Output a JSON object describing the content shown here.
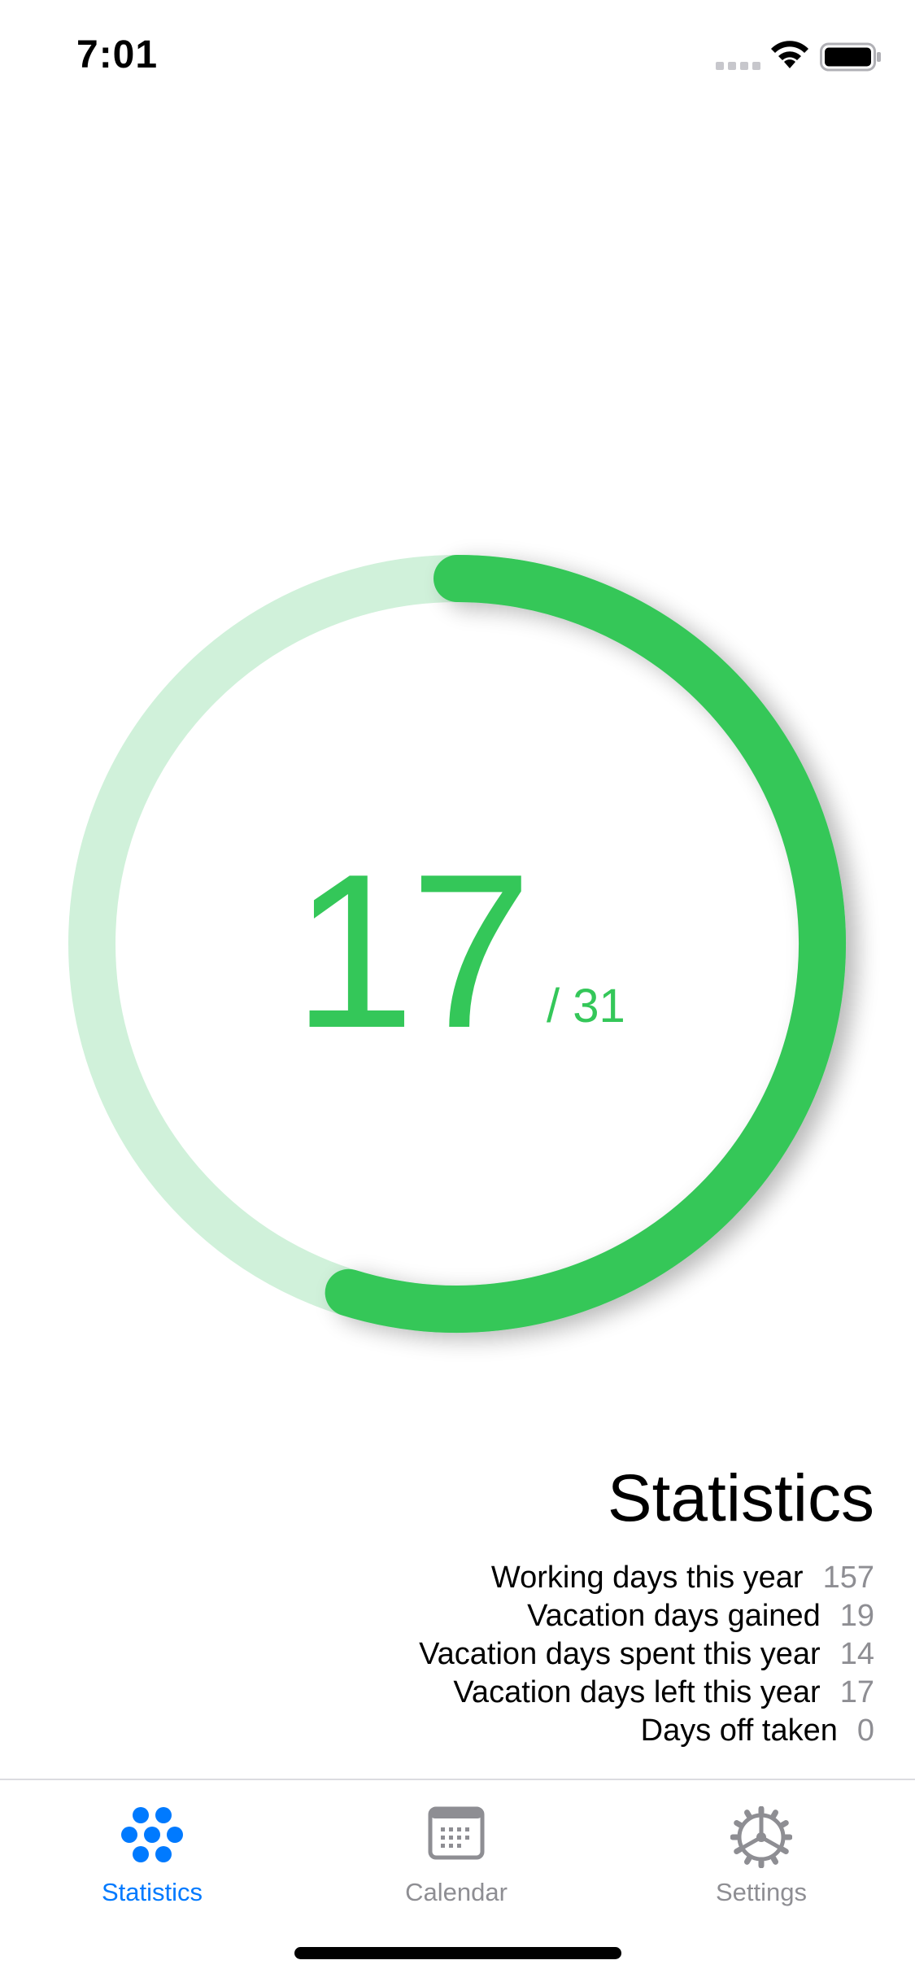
{
  "status_bar": {
    "time": "7:01"
  },
  "ring": {
    "value": "17",
    "total_text": "/ 31",
    "progress_fraction": 0.548,
    "colors": {
      "active": "#34c759",
      "track": "#d0f1da"
    }
  },
  "statistics": {
    "title": "Statistics",
    "rows": [
      {
        "label": "Working days this year",
        "value": "157"
      },
      {
        "label": "Vacation days gained",
        "value": "19"
      },
      {
        "label": "Vacation days spent this year",
        "value": "14"
      },
      {
        "label": "Vacation days left this year",
        "value": "17"
      },
      {
        "label": "Days off taken",
        "value": "0"
      }
    ]
  },
  "tab_bar": {
    "tabs": [
      {
        "label": "Statistics",
        "icon": "dots-grid-icon",
        "active": true
      },
      {
        "label": "Calendar",
        "icon": "calendar-icon",
        "active": false
      },
      {
        "label": "Settings",
        "icon": "gear-icon",
        "active": false
      }
    ],
    "colors": {
      "active": "#007aff",
      "inactive": "#8e8e93"
    }
  }
}
